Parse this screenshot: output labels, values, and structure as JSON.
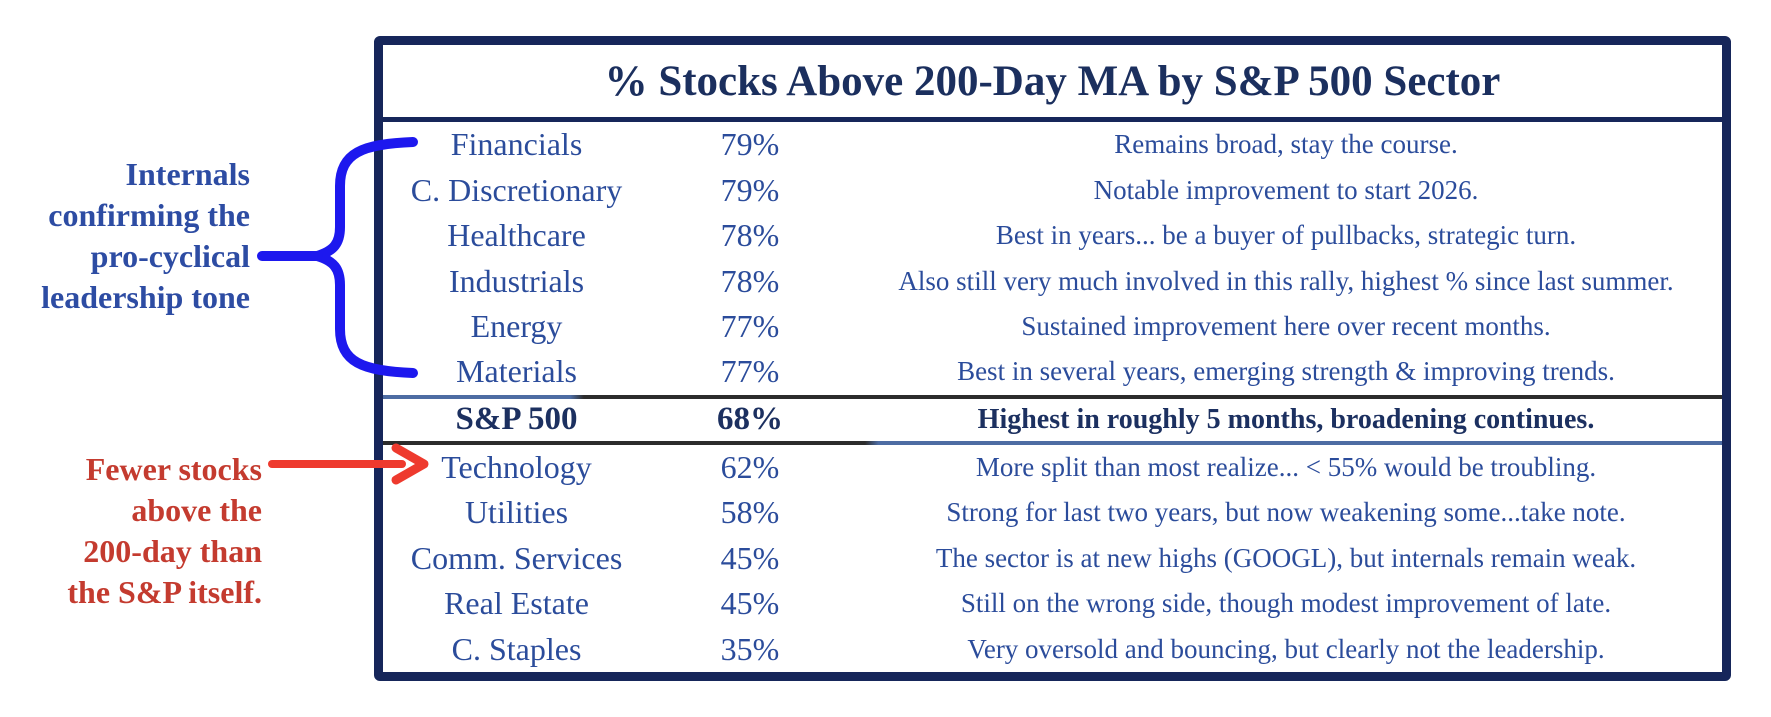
{
  "chart_data": {
    "type": "table",
    "title": "% Stocks Above 200-Day MA by S&P 500 Sector",
    "rows": [
      {
        "sector": "Financials",
        "pct": "79%",
        "comment": "Remains broad, stay the course."
      },
      {
        "sector": "C. Discretionary",
        "pct": "79%",
        "comment": "Notable improvement to start 2026."
      },
      {
        "sector": "Healthcare",
        "pct": "78%",
        "comment": "Best in years... be a buyer of pullbacks, strategic turn."
      },
      {
        "sector": "Industrials",
        "pct": "78%",
        "comment": "Also still very much involved in this rally, highest % since last summer."
      },
      {
        "sector": "Energy",
        "pct": "77%",
        "comment": "Sustained improvement here over recent months."
      },
      {
        "sector": "Materials",
        "pct": "77%",
        "comment": "Best in several years, emerging strength & improving trends."
      },
      {
        "sector": "S&P 500",
        "pct": "68%",
        "comment": "Highest in roughly 5 months, broadening continues.",
        "benchmark": true
      },
      {
        "sector": "Technology",
        "pct": "62%",
        "comment": "More split than most realize... < 55% would be troubling."
      },
      {
        "sector": "Utilities",
        "pct": "58%",
        "comment": "Strong for last two years, but now weakening some...take note."
      },
      {
        "sector": "Comm. Services",
        "pct": "45%",
        "comment": "The sector is at new highs (GOOGL), but internals remain weak."
      },
      {
        "sector": "Real Estate",
        "pct": "45%",
        "comment": "Still on the wrong side, though modest improvement of late."
      },
      {
        "sector": "C. Staples",
        "pct": "35%",
        "comment": "Very oversold and bouncing, but clearly not the leadership."
      }
    ]
  },
  "annotations": {
    "blue_note": {
      "lines": [
        "Internals",
        "confirming the",
        "pro-cyclical",
        "leadership tone"
      ]
    },
    "red_note": {
      "lines": [
        "Fewer stocks",
        "above the",
        "200-day than",
        "the S&P itself."
      ]
    }
  },
  "colors": {
    "background": "#ffffff",
    "border_navy": "#16265a",
    "title_text": "#1b2f5e",
    "row_text": "#2b4c9b",
    "benchmark_text": "#1c3060",
    "divider_slate": "#4d6ca3",
    "divider_dark": "#2c2c2c",
    "brace_blue": "#1d18ee",
    "blue_note": "#2d4ca3",
    "red_note": "#c43b2f",
    "arrow_red": "#ee3a2e"
  }
}
